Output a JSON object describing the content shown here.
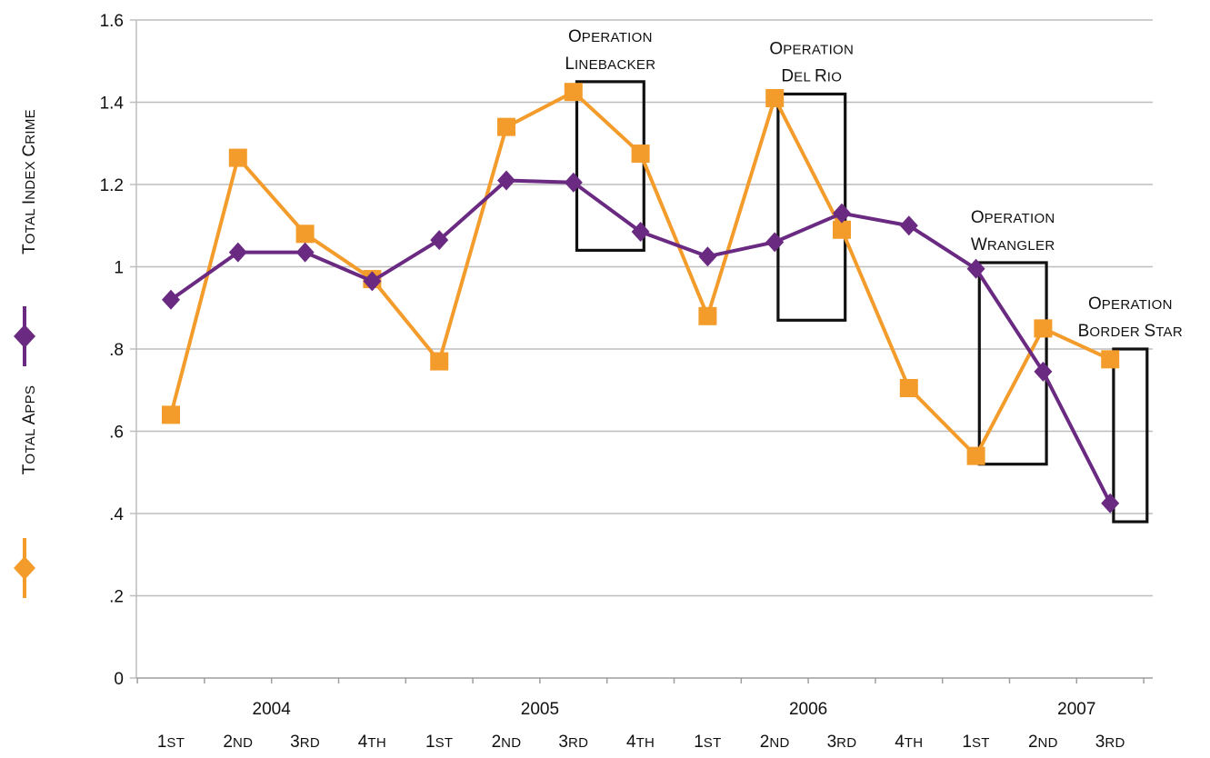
{
  "chart_data": {
    "type": "line",
    "title": "",
    "xlabel": "",
    "ylabel": "",
    "ylim": [
      0,
      1.6
    ],
    "yticks": [
      {
        "value": 0,
        "label": "0"
      },
      {
        "value": 0.2,
        "label": ".2"
      },
      {
        "value": 0.4,
        "label": ".4"
      },
      {
        "value": 0.6,
        "label": ".6"
      },
      {
        "value": 0.8,
        "label": ".8"
      },
      {
        "value": 1.0,
        "label": "1"
      },
      {
        "value": 1.2,
        "label": "1.2"
      },
      {
        "value": 1.4,
        "label": "1.4"
      },
      {
        "value": 1.6,
        "label": "1.6"
      }
    ],
    "grid": true,
    "years": [
      "2004",
      "2005",
      "2006",
      "2007"
    ],
    "quarters": [
      "1st",
      "2nd",
      "3rd",
      "4th",
      "1st",
      "2nd",
      "3rd",
      "4th",
      "1st",
      "2nd",
      "3rd",
      "4th",
      "1st",
      "2nd",
      "3rd"
    ],
    "series": [
      {
        "name": "Total Index Crime",
        "color": "#6a2a82",
        "marker": "diamond",
        "values": [
          0.92,
          1.035,
          1.035,
          0.965,
          1.065,
          1.21,
          1.205,
          1.085,
          1.025,
          1.06,
          1.13,
          1.1,
          0.995,
          0.745,
          0.425
        ]
      },
      {
        "name": "Total Apps",
        "color": "#f39c2c",
        "marker": "square",
        "values": [
          0.64,
          1.265,
          1.08,
          0.97,
          0.77,
          1.34,
          1.425,
          1.275,
          0.88,
          1.41,
          1.09,
          0.705,
          0.54,
          0.85,
          0.775
        ]
      }
    ],
    "annotations": [
      {
        "lines": [
          "Operation",
          "Linebacker"
        ],
        "box_x": [
          6.05,
          7.05
        ],
        "box_y": [
          1.04,
          1.45
        ]
      },
      {
        "lines": [
          "Operation",
          "Del Rio"
        ],
        "box_x": [
          9.05,
          10.05
        ],
        "box_y": [
          0.87,
          1.42
        ]
      },
      {
        "lines": [
          "Operation",
          "Wrangler"
        ],
        "box_x": [
          12.05,
          13.05
        ],
        "box_y": [
          0.52,
          1.01
        ]
      },
      {
        "lines": [
          "Operation",
          "Border Star"
        ],
        "box_x": [
          14.05,
          14.55
        ],
        "box_y": [
          0.38,
          0.8
        ]
      }
    ]
  }
}
